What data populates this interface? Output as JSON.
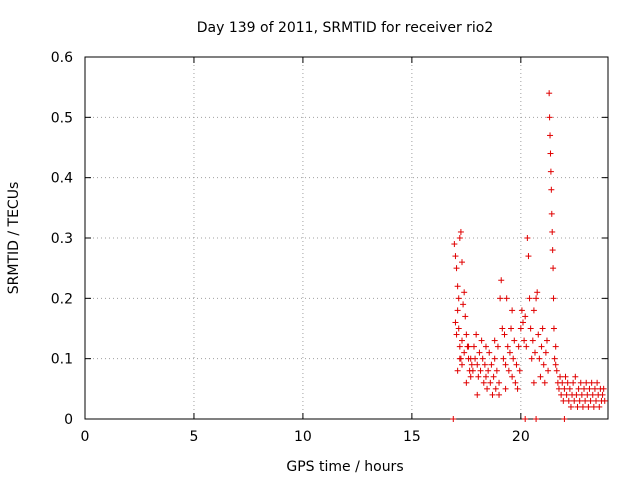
{
  "chart_data": {
    "type": "scatter",
    "title": "Day 139 of 2011, SRMTID for receiver rio2",
    "xlabel": "GPS time / hours",
    "ylabel": "SRMTID / TECUs",
    "xlim": [
      0,
      24
    ],
    "ylim": [
      0,
      0.6
    ],
    "xticks": [
      0,
      5,
      10,
      15,
      20
    ],
    "yticks": [
      0,
      0.1,
      0.2,
      0.3,
      0.4,
      0.5,
      0.6
    ],
    "xtick_labels": [
      "0",
      "5",
      "10",
      "15",
      "20"
    ],
    "ytick_labels": [
      "0",
      "0.1",
      "0.2",
      "0.3",
      "0.4",
      "0.5",
      "0.6"
    ],
    "grid": true,
    "marker": "plus",
    "color": "#e00000",
    "series": [
      {
        "name": "rio2",
        "points": [
          [
            16.9,
            0.0
          ],
          [
            22.0,
            0.0
          ],
          [
            16.95,
            0.29
          ],
          [
            17.0,
            0.27
          ],
          [
            17.05,
            0.25
          ],
          [
            17.1,
            0.22
          ],
          [
            17.15,
            0.2
          ],
          [
            17.2,
            0.3
          ],
          [
            17.25,
            0.31
          ],
          [
            17.3,
            0.26
          ],
          [
            17.0,
            0.16
          ],
          [
            17.05,
            0.14
          ],
          [
            17.1,
            0.18
          ],
          [
            17.15,
            0.15
          ],
          [
            17.2,
            0.12
          ],
          [
            17.25,
            0.1
          ],
          [
            17.3,
            0.13
          ],
          [
            17.35,
            0.19
          ],
          [
            17.4,
            0.21
          ],
          [
            17.45,
            0.17
          ],
          [
            17.5,
            0.14
          ],
          [
            17.55,
            0.12
          ],
          [
            17.6,
            0.1
          ],
          [
            17.65,
            0.08
          ],
          [
            17.7,
            0.07
          ],
          [
            17.75,
            0.09
          ],
          [
            17.1,
            0.08
          ],
          [
            17.2,
            0.1
          ],
          [
            17.3,
            0.09
          ],
          [
            17.4,
            0.11
          ],
          [
            17.5,
            0.06
          ],
          [
            17.6,
            0.12
          ],
          [
            17.7,
            0.1
          ],
          [
            17.8,
            0.08
          ],
          [
            17.85,
            0.12
          ],
          [
            17.9,
            0.1
          ],
          [
            17.95,
            0.14
          ],
          [
            18.0,
            0.09
          ],
          [
            18.05,
            0.07
          ],
          [
            18.1,
            0.11
          ],
          [
            18.15,
            0.08
          ],
          [
            18.2,
            0.13
          ],
          [
            18.25,
            0.1
          ],
          [
            18.3,
            0.06
          ],
          [
            18.35,
            0.09
          ],
          [
            18.4,
            0.07
          ],
          [
            18.45,
            0.05
          ],
          [
            18.5,
            0.08
          ],
          [
            18.55,
            0.11
          ],
          [
            18.6,
            0.06
          ],
          [
            18.65,
            0.09
          ],
          [
            18.7,
            0.04
          ],
          [
            18.75,
            0.07
          ],
          [
            18.8,
            0.1
          ],
          [
            18.85,
            0.05
          ],
          [
            18.9,
            0.08
          ],
          [
            18.95,
            0.12
          ],
          [
            19.0,
            0.06
          ],
          [
            19.05,
            0.2
          ],
          [
            19.1,
            0.23
          ],
          [
            19.15,
            0.15
          ],
          [
            19.2,
            0.1
          ],
          [
            19.25,
            0.14
          ],
          [
            19.3,
            0.09
          ],
          [
            19.35,
            0.2
          ],
          [
            19.4,
            0.12
          ],
          [
            19.45,
            0.08
          ],
          [
            19.5,
            0.11
          ],
          [
            19.55,
            0.15
          ],
          [
            19.6,
            0.07
          ],
          [
            19.65,
            0.1
          ],
          [
            19.7,
            0.13
          ],
          [
            19.75,
            0.06
          ],
          [
            19.8,
            0.09
          ],
          [
            19.85,
            0.05
          ],
          [
            19.9,
            0.12
          ],
          [
            19.95,
            0.08
          ],
          [
            20.0,
            0.15
          ],
          [
            20.05,
            0.18
          ],
          [
            20.1,
            0.16
          ],
          [
            20.15,
            0.13
          ],
          [
            20.2,
            0.17
          ],
          [
            20.25,
            0.12
          ],
          [
            20.3,
            0.3
          ],
          [
            20.35,
            0.27
          ],
          [
            20.4,
            0.2
          ],
          [
            20.45,
            0.15
          ],
          [
            20.5,
            0.1
          ],
          [
            20.55,
            0.13
          ],
          [
            20.6,
            0.18
          ],
          [
            20.65,
            0.11
          ],
          [
            20.7,
            0.2
          ],
          [
            20.75,
            0.21
          ],
          [
            20.8,
            0.14
          ],
          [
            20.85,
            0.1
          ],
          [
            20.9,
            0.07
          ],
          [
            20.95,
            0.12
          ],
          [
            21.0,
            0.15
          ],
          [
            21.05,
            0.09
          ],
          [
            21.1,
            0.06
          ],
          [
            21.15,
            0.11
          ],
          [
            21.2,
            0.13
          ],
          [
            21.25,
            0.08
          ],
          [
            21.3,
            0.54
          ],
          [
            21.32,
            0.5
          ],
          [
            21.34,
            0.47
          ],
          [
            21.36,
            0.44
          ],
          [
            21.38,
            0.41
          ],
          [
            21.4,
            0.38
          ],
          [
            21.42,
            0.34
          ],
          [
            21.44,
            0.31
          ],
          [
            21.46,
            0.28
          ],
          [
            21.48,
            0.25
          ],
          [
            21.5,
            0.2
          ],
          [
            21.52,
            0.15
          ],
          [
            21.55,
            0.1
          ],
          [
            21.6,
            0.12
          ],
          [
            21.65,
            0.08
          ],
          [
            21.7,
            0.06
          ],
          [
            21.75,
            0.05
          ],
          [
            21.8,
            0.07
          ],
          [
            21.85,
            0.04
          ],
          [
            21.9,
            0.06
          ],
          [
            21.95,
            0.03
          ],
          [
            22.0,
            0.05
          ],
          [
            22.05,
            0.07
          ],
          [
            22.1,
            0.04
          ],
          [
            22.15,
            0.06
          ],
          [
            22.2,
            0.03
          ],
          [
            22.25,
            0.05
          ],
          [
            22.3,
            0.02
          ],
          [
            22.35,
            0.04
          ],
          [
            22.4,
            0.06
          ],
          [
            22.45,
            0.03
          ],
          [
            22.5,
            0.07
          ],
          [
            22.55,
            0.04
          ],
          [
            22.6,
            0.02
          ],
          [
            22.65,
            0.05
          ],
          [
            22.7,
            0.03
          ],
          [
            22.75,
            0.06
          ],
          [
            22.8,
            0.04
          ],
          [
            22.85,
            0.02
          ],
          [
            22.9,
            0.05
          ],
          [
            22.95,
            0.03
          ],
          [
            23.0,
            0.06
          ],
          [
            23.05,
            0.04
          ],
          [
            23.1,
            0.02
          ],
          [
            23.15,
            0.05
          ],
          [
            23.2,
            0.03
          ],
          [
            23.25,
            0.06
          ],
          [
            23.3,
            0.04
          ],
          [
            23.35,
            0.02
          ],
          [
            23.4,
            0.05
          ],
          [
            23.45,
            0.03
          ],
          [
            23.5,
            0.06
          ],
          [
            23.55,
            0.04
          ],
          [
            23.6,
            0.02
          ],
          [
            23.65,
            0.05
          ],
          [
            23.7,
            0.03
          ],
          [
            23.75,
            0.04
          ],
          [
            23.8,
            0.05
          ],
          [
            23.85,
            0.03
          ],
          [
            20.2,
            0.0
          ],
          [
            20.7,
            0.0
          ],
          [
            18.0,
            0.04
          ],
          [
            18.4,
            0.12
          ],
          [
            19.0,
            0.04
          ],
          [
            19.6,
            0.18
          ],
          [
            20.6,
            0.06
          ],
          [
            21.6,
            0.09
          ],
          [
            18.8,
            0.13
          ],
          [
            19.3,
            0.05
          ]
        ]
      }
    ]
  }
}
